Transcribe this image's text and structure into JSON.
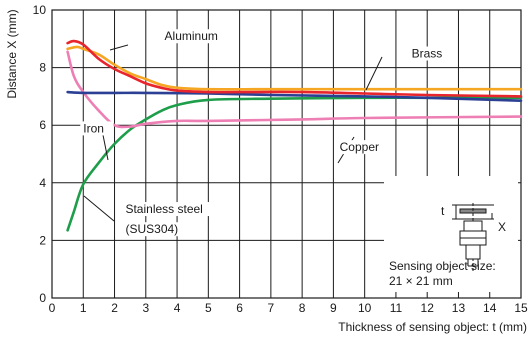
{
  "chart_data": {
    "type": "line",
    "xlabel": "Thickness of sensing object: t (mm)",
    "ylabel": "Distance X (mm)",
    "xlim": [
      0,
      15
    ],
    "ylim": [
      0,
      10
    ],
    "xticks": [
      0,
      1,
      2,
      3,
      4,
      5,
      6,
      7,
      8,
      9,
      10,
      11,
      12,
      13,
      14,
      15
    ],
    "yticks": [
      0,
      2,
      4,
      6,
      8,
      10
    ],
    "grid": true,
    "series": [
      {
        "name": "Aluminum",
        "color": "#e8242c",
        "points": [
          [
            0.5,
            8.85
          ],
          [
            0.7,
            8.92
          ],
          [
            1.0,
            8.8
          ],
          [
            1.5,
            8.3
          ],
          [
            2.0,
            7.95
          ],
          [
            2.5,
            7.7
          ],
          [
            3.0,
            7.45
          ],
          [
            3.5,
            7.3
          ],
          [
            4.0,
            7.2
          ],
          [
            5.0,
            7.15
          ],
          [
            6.0,
            7.15
          ],
          [
            8.0,
            7.15
          ],
          [
            10.0,
            7.1
          ],
          [
            12.0,
            7.05
          ],
          [
            15.0,
            7.0
          ]
        ]
      },
      {
        "name": "Brass",
        "color": "#f5a623",
        "points": [
          [
            0.5,
            8.65
          ],
          [
            0.8,
            8.72
          ],
          [
            1.0,
            8.65
          ],
          [
            1.5,
            8.45
          ],
          [
            2.0,
            8.1
          ],
          [
            2.5,
            7.8
          ],
          [
            3.0,
            7.6
          ],
          [
            3.5,
            7.4
          ],
          [
            4.0,
            7.3
          ],
          [
            5.0,
            7.25
          ],
          [
            7.0,
            7.25
          ],
          [
            10.0,
            7.25
          ],
          [
            15.0,
            7.25
          ]
        ]
      },
      {
        "name": "Iron",
        "color": "#2b3f94",
        "points": [
          [
            0.5,
            7.15
          ],
          [
            1.0,
            7.12
          ],
          [
            2.0,
            7.12
          ],
          [
            3.0,
            7.12
          ],
          [
            5.0,
            7.1
          ],
          [
            7.0,
            7.05
          ],
          [
            10.0,
            7.0
          ],
          [
            12.0,
            6.95
          ],
          [
            15.0,
            6.85
          ]
        ]
      },
      {
        "name": "Copper",
        "color": "#ee7fb4",
        "points": [
          [
            0.5,
            8.55
          ],
          [
            0.7,
            7.7
          ],
          [
            1.0,
            7.15
          ],
          [
            1.5,
            6.5
          ],
          [
            2.0,
            6.0
          ],
          [
            2.5,
            5.95
          ],
          [
            3.0,
            6.05
          ],
          [
            4.0,
            6.15
          ],
          [
            5.0,
            6.15
          ],
          [
            8.0,
            6.2
          ],
          [
            10.0,
            6.25
          ],
          [
            15.0,
            6.3
          ]
        ]
      },
      {
        "name": "Stainless steel (SUS304)",
        "color": "#1e9e4a",
        "points": [
          [
            0.5,
            2.35
          ],
          [
            0.7,
            3.0
          ],
          [
            1.0,
            3.95
          ],
          [
            1.5,
            4.7
          ],
          [
            2.0,
            5.35
          ],
          [
            2.5,
            5.85
          ],
          [
            3.0,
            6.2
          ],
          [
            3.5,
            6.5
          ],
          [
            4.0,
            6.7
          ],
          [
            5.0,
            6.88
          ],
          [
            7.0,
            6.92
          ],
          [
            10.0,
            6.95
          ],
          [
            12.0,
            6.95
          ],
          [
            15.0,
            6.95
          ]
        ]
      }
    ],
    "annotations": [
      {
        "text": "Aluminum",
        "x": 3.6,
        "y": 8.95
      },
      {
        "text": "Brass",
        "x": 11.5,
        "y": 8.35
      },
      {
        "text": "Iron",
        "x": 1.0,
        "y": 5.75
      },
      {
        "text": "Copper",
        "x": 9.2,
        "y": 5.1
      },
      {
        "text": "Stainless steel",
        "x": 2.35,
        "y": 2.95
      },
      {
        "text": "(SUS304)",
        "x": 2.35,
        "y": 2.25
      }
    ],
    "inset": {
      "label_t": "t",
      "label_x": "X",
      "note_line1": "Sensing object size:",
      "note_line2": "21 × 21 mm"
    }
  }
}
